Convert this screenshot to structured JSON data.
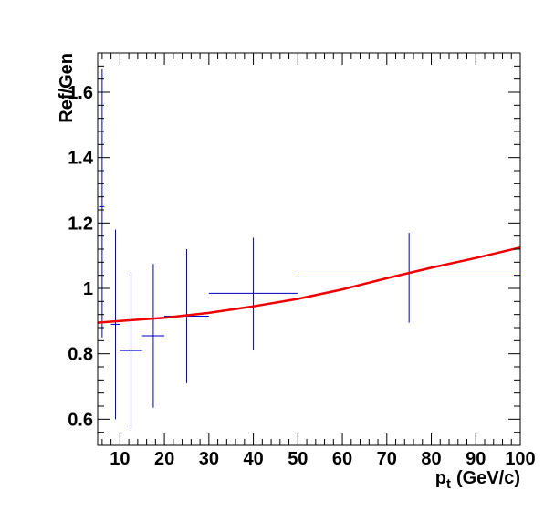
{
  "chart_data": {
    "type": "scatter",
    "xlabel": "p",
    "xlabel_sub": "t",
    "xlabel_units": "(GeV/c)",
    "ylabel": "Ref/Gen",
    "xlim": [
      5,
      100
    ],
    "ylim": [
      0.52,
      1.72
    ],
    "x_ticks": [
      10,
      20,
      30,
      40,
      50,
      60,
      70,
      80,
      90,
      100
    ],
    "y_ticks": [
      0.6,
      0.8,
      1,
      1.2,
      1.4,
      1.6
    ],
    "y_tick_labels": [
      "0.6",
      "0.8",
      "1",
      "1.2",
      "1.4",
      "1.6"
    ],
    "grid": false,
    "colors": {
      "points": "#0000cc",
      "fit": "#ee0000",
      "frame": "#000000"
    },
    "series": [
      {
        "type": "errorbar",
        "points": [
          {
            "x": 6.0,
            "xlo": 5.5,
            "xhi": 6.5,
            "y": 1.25,
            "ylo": 0.85,
            "yhi": 1.67
          },
          {
            "x": 9.0,
            "xlo": 8.0,
            "xhi": 10.0,
            "y": 0.89,
            "ylo": 0.6,
            "yhi": 1.18
          },
          {
            "x": 12.5,
            "xlo": 10.0,
            "xhi": 15.0,
            "y": 0.81,
            "ylo": 0.57,
            "yhi": 1.05
          },
          {
            "x": 17.5,
            "xlo": 15.0,
            "xhi": 20.0,
            "y": 0.855,
            "ylo": 0.635,
            "yhi": 1.075
          },
          {
            "x": 25.0,
            "xlo": 20.0,
            "xhi": 30.0,
            "y": 0.915,
            "ylo": 0.71,
            "yhi": 1.12
          },
          {
            "x": 40.0,
            "xlo": 30.0,
            "xhi": 50.0,
            "y": 0.985,
            "ylo": 0.81,
            "yhi": 1.155
          },
          {
            "x": 75.0,
            "xlo": 50.0,
            "xhi": 100.0,
            "y": 1.035,
            "ylo": 0.895,
            "yhi": 1.17
          }
        ]
      },
      {
        "type": "fit",
        "x": [
          5,
          10,
          20,
          30,
          40,
          50,
          60,
          70,
          80,
          90,
          100
        ],
        "y": [
          0.895,
          0.9,
          0.91,
          0.925,
          0.945,
          0.968,
          0.997,
          1.031,
          1.063,
          1.093,
          1.125
        ]
      }
    ]
  }
}
